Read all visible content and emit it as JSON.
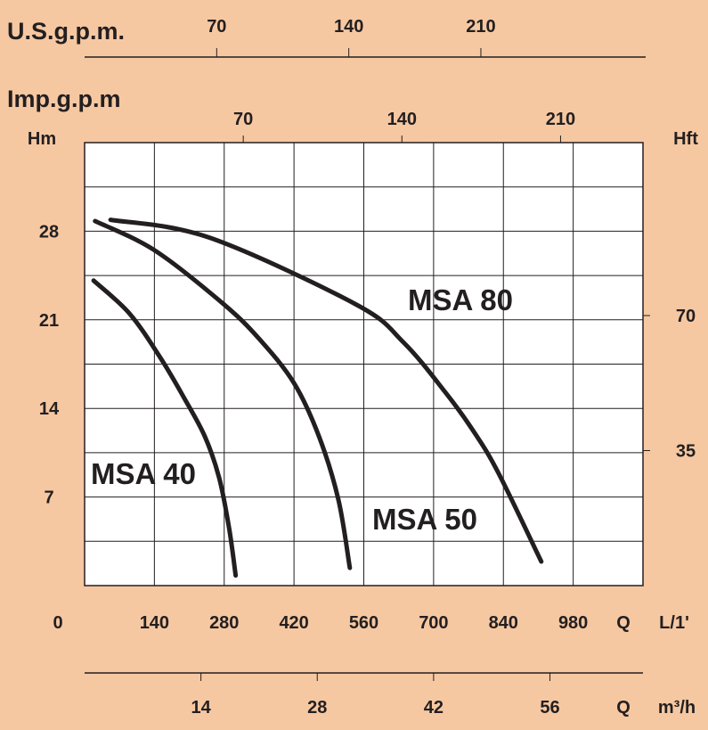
{
  "chart_data": {
    "type": "line",
    "title": "",
    "xlabel": "Q",
    "xunit": "L/1'",
    "ylabel": "Hm",
    "y2label": "Hft",
    "xlim": [
      0,
      1120
    ],
    "ylim": [
      0,
      35
    ],
    "x_ticks": [
      0,
      140,
      280,
      420,
      560,
      700,
      840,
      980
    ],
    "y_ticks": [
      0,
      7,
      14,
      21,
      28
    ],
    "y2_ticks": [
      35,
      70
    ],
    "usgpm_label": "U.S.g.p.m.",
    "usgpm_ticks": [
      70,
      140,
      210
    ],
    "impgpm_label": "Imp.g.p.m",
    "impgpm_ticks": [
      70,
      140,
      210
    ],
    "m3h_label": "Q",
    "m3h_unit": "m³/h",
    "m3h_ticks": [
      14,
      28,
      42,
      56
    ],
    "grid": true,
    "background": "#f6c8a2",
    "series": [
      {
        "name": "MSA 40",
        "x": [
          18,
          90,
          152,
          200,
          241,
          270,
          290,
          303
        ],
        "y": [
          24.1,
          21.5,
          18,
          14.8,
          11.8,
          8.5,
          4.5,
          0.8
        ]
      },
      {
        "name": "MSA 50",
        "x": [
          21,
          140,
          277,
          350,
          420,
          470,
          509,
          532
        ],
        "y": [
          28.8,
          26.5,
          22.3,
          19.5,
          16,
          11.8,
          6.8,
          1.4
        ]
      },
      {
        "name": "MSA 80",
        "x": [
          52,
          250,
          545,
          640,
          723,
          780,
          830,
          916
        ],
        "y": [
          28.9,
          27.5,
          22.2,
          19.2,
          15.3,
          12.2,
          8.9,
          1.9
        ]
      }
    ]
  }
}
